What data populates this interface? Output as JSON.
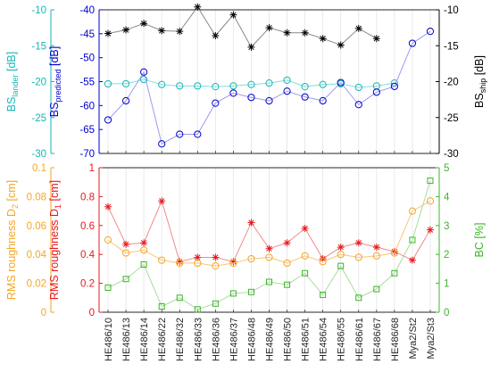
{
  "categories": [
    "HE486/10",
    "HE486/13",
    "HE486/14",
    "HE486/22",
    "HE486/32",
    "HE486/33",
    "HE486/36",
    "HE486/37",
    "HE486/48",
    "HE486/49",
    "HE486/50",
    "HE486/51",
    "HE486/54",
    "HE486/55",
    "HE486/61",
    "HE486/67",
    "HE486/68",
    "Mya2/St2",
    "Mya2/St3"
  ],
  "chart_data": [
    {
      "type": "line",
      "axes": [
        {
          "id": "lander",
          "label": "BS_lander [dB]",
          "label_main": "BS",
          "label_sub": "lander",
          "label_unit": " [dB]",
          "color": "#17b6b6",
          "range": [
            -30,
            -10
          ],
          "ticks": [
            "-30",
            "-25",
            "-20",
            "-15",
            "-10"
          ]
        },
        {
          "id": "predicted",
          "label": "BS_predicted [dB]",
          "label_main": "BS",
          "label_sub": "predicted",
          "label_unit": " [dB]",
          "color": "#0000cc",
          "range": [
            -70,
            -40
          ],
          "ticks": [
            "-70",
            "-65",
            "-60",
            "-55",
            "-50",
            "-45",
            "-40"
          ]
        },
        {
          "id": "ship",
          "label": "BS_ship [dB]",
          "label_main": "BS",
          "label_sub": "ship",
          "label_unit": " [dB]",
          "color": "#000000",
          "range": [
            -30,
            -10
          ],
          "ticks": [
            "-30",
            "-25",
            "-20",
            "-15",
            "-10"
          ]
        }
      ],
      "series": [
        {
          "axis": "ship",
          "marker": "star",
          "color": "#000000",
          "line_color": "#888888",
          "values": [
            -13.3,
            -12.8,
            -11.9,
            -12.9,
            -13.0,
            -9.6,
            -13.6,
            -10.7,
            -15.2,
            -12.5,
            -13.2,
            -13.2,
            -14.0,
            -14.9,
            -12.6,
            -14.0,
            null,
            null,
            null
          ]
        },
        {
          "axis": "lander",
          "marker": "circle",
          "color": "#17b6b6",
          "line_color": "#7fdede",
          "values": [
            -20.3,
            -20.3,
            -19.7,
            -20.4,
            -20.6,
            -20.6,
            -20.7,
            -20.6,
            -20.4,
            -20.2,
            -19.8,
            -20.7,
            -20.4,
            -20.3,
            -20.8,
            -20.6,
            -20.2,
            null,
            null
          ]
        },
        {
          "axis": "predicted",
          "marker": "circle",
          "color": "#0000cc",
          "line_color": "#9a9af0",
          "values": [
            -63.0,
            -59.0,
            -53.0,
            -68.0,
            -66.0,
            -66.0,
            -59.5,
            -57.4,
            -58.3,
            -59.0,
            -57.0,
            -58.2,
            -59.0,
            -55.2,
            -59.8,
            -57.2,
            -56.0,
            -47.0,
            -44.5
          ]
        }
      ]
    },
    {
      "type": "line",
      "axes": [
        {
          "id": "d2",
          "label": "RMS roughness D_2 [cm]",
          "label_main": "RMS roughness D",
          "label_sub": "2",
          "label_unit": " [cm]",
          "color": "#f5a623",
          "range": [
            0,
            0.1
          ],
          "ticks": [
            "0",
            "0.02",
            "0.04",
            "0.06",
            "0.08",
            "0.1"
          ]
        },
        {
          "id": "d1",
          "label": "RMS roughness D_1 [cm]",
          "label_main": "RMS roughness D",
          "label_sub": "1",
          "label_unit": " [cm]",
          "color": "#e8181e",
          "range": [
            0,
            1
          ],
          "ticks": [
            "0",
            "0.2",
            "0.4",
            "0.6",
            "0.8",
            "1"
          ]
        },
        {
          "id": "bc",
          "label": "BC [%]",
          "label_main": "BC [%]",
          "label_sub": "",
          "label_unit": "",
          "color": "#3cb528",
          "range": [
            0,
            5
          ],
          "ticks": [
            "0",
            "1",
            "2",
            "3",
            "4",
            "5"
          ]
        }
      ],
      "series": [
        {
          "axis": "d1",
          "marker": "star",
          "color": "#e8181e",
          "line_color": "#f08a8a",
          "values": [
            0.73,
            0.47,
            0.48,
            0.77,
            0.35,
            0.38,
            0.38,
            0.35,
            0.62,
            0.44,
            0.48,
            0.58,
            0.37,
            0.45,
            0.48,
            0.45,
            0.42,
            0.36,
            0.57
          ]
        },
        {
          "axis": "d2",
          "marker": "circle",
          "color": "#f5a623",
          "line_color": "#f8c57a",
          "values": [
            0.05,
            0.041,
            0.043,
            0.036,
            0.034,
            0.034,
            0.032,
            0.034,
            0.037,
            0.038,
            0.034,
            0.039,
            0.035,
            0.04,
            0.038,
            0.039,
            0.041,
            0.07,
            0.077
          ]
        },
        {
          "axis": "bc",
          "marker": "square",
          "color": "#3cb528",
          "line_color": "#a6df9a",
          "values": [
            0.85,
            1.15,
            1.65,
            0.2,
            0.5,
            0.1,
            0.3,
            0.65,
            0.7,
            1.05,
            0.95,
            1.35,
            0.6,
            1.6,
            0.5,
            0.8,
            1.35,
            2.5,
            4.55
          ]
        }
      ]
    }
  ]
}
